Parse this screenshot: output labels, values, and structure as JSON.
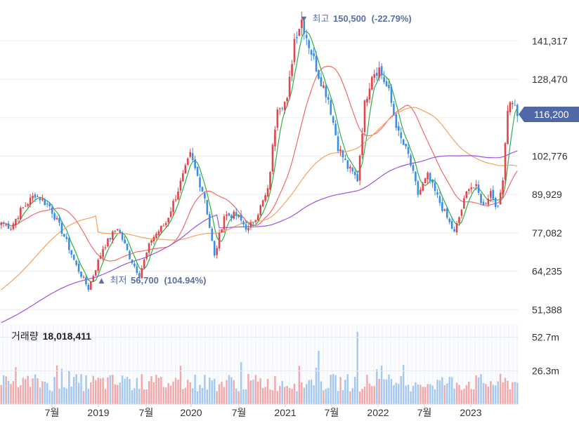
{
  "chart_data": {
    "type": "candlestick",
    "price_axis": {
      "ticks": [
        51388,
        64235,
        77082,
        89929,
        102776,
        115623,
        128470,
        141317
      ],
      "tick_labels": [
        "51,388",
        "64,235",
        "77,082",
        "89,929",
        "102,776",
        "",
        "128,470",
        "141,317"
      ],
      "range": [
        47000,
        155000
      ]
    },
    "x_labels": [
      "7월",
      "2019",
      "7월",
      "2020",
      "7월",
      "2021",
      "7월",
      "2022",
      "7월",
      "2023"
    ],
    "current_price": 116200,
    "current_price_label": "116,200",
    "high": {
      "marker": "▼",
      "label": "최고",
      "value": "150,500",
      "pct": "(-22.79%)",
      "price": 150500
    },
    "low": {
      "marker": "▲",
      "label": "최저",
      "value": "56,700",
      "pct": "(104.94%)",
      "price": 56700
    },
    "volume": {
      "label": "거래량",
      "value": "18,018,411",
      "ticks": [
        26300000,
        52700000
      ],
      "tick_labels": [
        "26.3m",
        "52.7m"
      ],
      "range": [
        0,
        63000000
      ]
    },
    "anchors": [
      {
        "t": 0,
        "p": 80500
      },
      {
        "t": 4,
        "p": 79000
      },
      {
        "t": 8,
        "p": 84500
      },
      {
        "t": 14,
        "p": 90000
      },
      {
        "t": 20,
        "p": 86000
      },
      {
        "t": 26,
        "p": 76000
      },
      {
        "t": 31,
        "p": 66000
      },
      {
        "t": 36,
        "p": 58500
      },
      {
        "t": 42,
        "p": 72000
      },
      {
        "t": 48,
        "p": 79000
      },
      {
        "t": 53,
        "p": 69000
      },
      {
        "t": 57,
        "p": 63000
      },
      {
        "t": 62,
        "p": 75000
      },
      {
        "t": 68,
        "p": 80500
      },
      {
        "t": 75,
        "p": 96000
      },
      {
        "t": 78,
        "p": 103000
      },
      {
        "t": 84,
        "p": 89000
      },
      {
        "t": 88,
        "p": 69000
      },
      {
        "t": 92,
        "p": 83000
      },
      {
        "t": 97,
        "p": 83000
      },
      {
        "t": 102,
        "p": 78000
      },
      {
        "t": 106,
        "p": 84000
      },
      {
        "t": 110,
        "p": 91000
      },
      {
        "t": 114,
        "p": 120000
      },
      {
        "t": 118,
        "p": 121000
      },
      {
        "t": 121,
        "p": 142000
      },
      {
        "t": 124,
        "p": 148500
      },
      {
        "t": 127,
        "p": 140000
      },
      {
        "t": 131,
        "p": 130000
      },
      {
        "t": 135,
        "p": 122000
      },
      {
        "t": 139,
        "p": 106000
      },
      {
        "t": 143,
        "p": 99000
      },
      {
        "t": 147,
        "p": 95000
      },
      {
        "t": 150,
        "p": 120000
      },
      {
        "t": 153,
        "p": 130500
      },
      {
        "t": 156,
        "p": 132000
      },
      {
        "t": 160,
        "p": 124000
      },
      {
        "t": 164,
        "p": 110000
      },
      {
        "t": 168,
        "p": 103000
      },
      {
        "t": 172,
        "p": 90000
      },
      {
        "t": 176,
        "p": 96000
      },
      {
        "t": 180,
        "p": 89000
      },
      {
        "t": 184,
        "p": 82000
      },
      {
        "t": 187,
        "p": 77000
      },
      {
        "t": 190,
        "p": 85000
      },
      {
        "t": 193,
        "p": 93000
      },
      {
        "t": 196,
        "p": 92000
      },
      {
        "t": 199,
        "p": 86000
      },
      {
        "t": 202,
        "p": 91000
      },
      {
        "t": 205,
        "p": 85000
      },
      {
        "t": 207,
        "p": 96000
      },
      {
        "t": 209,
        "p": 119000
      },
      {
        "t": 211,
        "p": 121500
      },
      {
        "t": 213,
        "p": 116200
      }
    ],
    "colors": {
      "up": "#e0464b",
      "down": "#3a8ee6",
      "ma5": "#2eb04a",
      "ma20": "#f06a6a",
      "ma60": "#f5a259",
      "ma120": "#a052e0",
      "vol_up": "#f2a8aa",
      "vol_down": "#a4c8f0",
      "price_tag": "#5068a6",
      "annotation": "#5a6fa6"
    }
  }
}
